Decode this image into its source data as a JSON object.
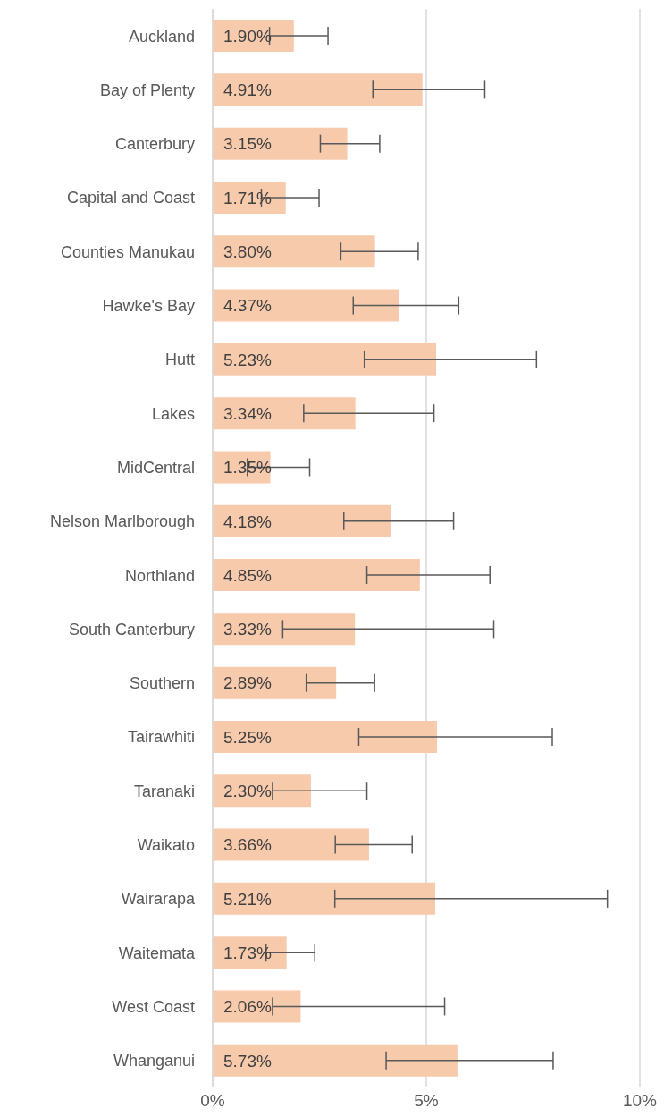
{
  "chart_data": {
    "type": "bar",
    "orientation": "horizontal",
    "categories": [
      "Auckland",
      "Bay of Plenty",
      "Canterbury",
      "Capital and Coast",
      "Counties Manukau",
      "Hawke's Bay",
      "Hutt",
      "Lakes",
      "MidCentral",
      "Nelson Marlborough",
      "Northland",
      "South Canterbury",
      "Southern",
      "Tairawhiti",
      "Taranaki",
      "Waikato",
      "Wairarapa",
      "Waitemata",
      "West Coast",
      "Whanganui"
    ],
    "values": [
      1.9,
      4.91,
      3.15,
      1.71,
      3.8,
      4.37,
      5.23,
      3.34,
      1.35,
      4.18,
      4.85,
      3.33,
      2.89,
      5.25,
      2.3,
      3.66,
      5.21,
      1.73,
      2.06,
      5.73
    ],
    "value_labels": [
      "1.90%",
      "4.91%",
      "3.15%",
      "1.71%",
      "3.80%",
      "4.37%",
      "5.23%",
      "3.34%",
      "1.35%",
      "4.18%",
      "4.85%",
      "3.33%",
      "2.89%",
      "5.25%",
      "2.30%",
      "3.66%",
      "5.21%",
      "1.73%",
      "2.06%",
      "5.73%"
    ],
    "errors": [
      [
        1.33,
        2.7
      ],
      [
        3.75,
        6.37
      ],
      [
        2.52,
        3.91
      ],
      [
        1.14,
        2.49
      ],
      [
        3.0,
        4.81
      ],
      [
        3.29,
        5.76
      ],
      [
        3.55,
        7.58
      ],
      [
        2.13,
        5.18
      ],
      [
        0.81,
        2.27
      ],
      [
        3.07,
        5.64
      ],
      [
        3.61,
        6.49
      ],
      [
        1.64,
        6.58
      ],
      [
        2.19,
        3.79
      ],
      [
        3.42,
        7.95
      ],
      [
        1.4,
        3.61
      ],
      [
        2.87,
        4.67
      ],
      [
        2.86,
        9.24
      ],
      [
        1.25,
        2.39
      ],
      [
        1.4,
        5.43
      ],
      [
        4.06,
        7.97
      ]
    ],
    "color": "#f7caac",
    "xlim": [
      0,
      10
    ],
    "xticks": [
      {
        "value": 0,
        "label": "0%"
      },
      {
        "value": 5,
        "label": "5%"
      },
      {
        "value": 10,
        "label": "10%"
      }
    ],
    "grid": "x"
  }
}
